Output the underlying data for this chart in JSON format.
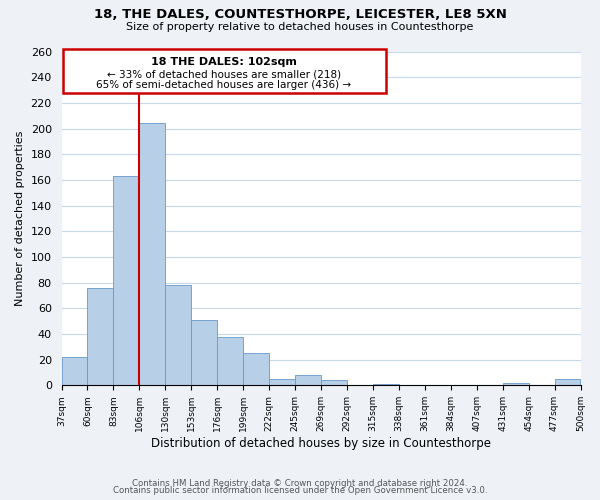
{
  "title": "18, THE DALES, COUNTESTHORPE, LEICESTER, LE8 5XN",
  "subtitle": "Size of property relative to detached houses in Countesthorpe",
  "xlabel": "Distribution of detached houses by size in Countesthorpe",
  "ylabel": "Number of detached properties",
  "bar_color": "#b8cfe8",
  "bar_edge_color": "#6699cc",
  "bins": [
    "37sqm",
    "60sqm",
    "83sqm",
    "106sqm",
    "130sqm",
    "153sqm",
    "176sqm",
    "199sqm",
    "222sqm",
    "245sqm",
    "269sqm",
    "292sqm",
    "315sqm",
    "338sqm",
    "361sqm",
    "384sqm",
    "407sqm",
    "431sqm",
    "454sqm",
    "477sqm",
    "500sqm"
  ],
  "values": [
    22,
    76,
    163,
    204,
    78,
    51,
    38,
    25,
    5,
    8,
    4,
    0,
    1,
    0,
    0,
    0,
    0,
    2,
    0,
    5
  ],
  "ylim": [
    0,
    260
  ],
  "yticks": [
    0,
    20,
    40,
    60,
    80,
    100,
    120,
    140,
    160,
    180,
    200,
    220,
    240,
    260
  ],
  "vline_x_index": 3,
  "vline_color": "#cc0000",
  "annotation_title": "18 THE DALES: 102sqm",
  "annotation_line1": "← 33% of detached houses are smaller (218)",
  "annotation_line2": "65% of semi-detached houses are larger (436) →",
  "footer1": "Contains HM Land Registry data © Crown copyright and database right 2024.",
  "footer2": "Contains public sector information licensed under the Open Government Licence v3.0.",
  "background_color": "#eef2f7",
  "plot_background": "#ffffff",
  "grid_color": "#c8d8e8"
}
